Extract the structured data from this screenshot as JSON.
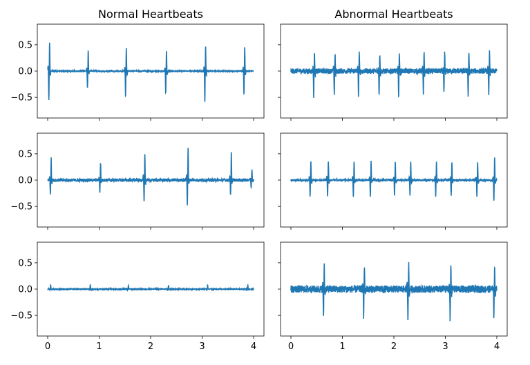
{
  "chart_data": [
    {
      "type": "line",
      "title": "Normal Heartbeats",
      "xlim": [
        0,
        4
      ],
      "ylim": [
        -0.8,
        0.8
      ],
      "xticks": [
        0,
        1,
        2,
        3,
        4
      ],
      "yticks": [
        0.5,
        0.0,
        -0.5
      ],
      "x_tick_labels_shown": false,
      "y_tick_labels_shown": true,
      "series_color": "#1f77b4",
      "peak_times": [
        0.03,
        0.78,
        1.52,
        2.3,
        3.06,
        3.82
      ],
      "peak_maxima": [
        0.68,
        0.49,
        0.55,
        0.49,
        0.59,
        0.58
      ],
      "peak_minima": [
        -0.69,
        -0.41,
        -0.6,
        -0.52,
        -0.74,
        -0.55
      ],
      "noise_level": 0.01
    },
    {
      "type": "line",
      "title": "Abnormal Heartbeats",
      "xlim": [
        0,
        4
      ],
      "ylim": [
        -0.8,
        0.8
      ],
      "xticks": [
        0,
        1,
        2,
        3,
        4
      ],
      "yticks": [
        0.5,
        0.0,
        -0.5
      ],
      "x_tick_labels_shown": false,
      "y_tick_labels_shown": false,
      "series_color": "#1f77b4",
      "peak_times": [
        0.45,
        0.85,
        1.32,
        1.72,
        2.1,
        2.58,
        2.98,
        3.45,
        3.85
      ],
      "peak_maxima": [
        0.45,
        0.42,
        0.45,
        0.42,
        0.43,
        0.45,
        0.42,
        0.44,
        0.43
      ],
      "peak_minima": [
        -0.58,
        -0.55,
        -0.57,
        -0.55,
        -0.58,
        -0.57,
        -0.55,
        -0.58,
        -0.54
      ],
      "noise_level": 0.05
    },
    {
      "type": "line",
      "title": "",
      "xlim": [
        0,
        4
      ],
      "ylim": [
        -0.8,
        0.8
      ],
      "xticks": [
        0,
        1,
        2,
        3,
        4
      ],
      "yticks": [
        0.5,
        0.0,
        -0.5
      ],
      "x_tick_labels_shown": false,
      "y_tick_labels_shown": true,
      "series_color": "#1f77b4",
      "peak_times": [
        0.06,
        1.02,
        1.88,
        2.72,
        3.56,
        3.96
      ],
      "peak_maxima": [
        0.52,
        0.42,
        0.63,
        0.78,
        0.66,
        0.24
      ],
      "peak_minima": [
        -0.36,
        -0.28,
        -0.52,
        -0.61,
        -0.38,
        -0.18
      ],
      "noise_level": 0.03
    },
    {
      "type": "line",
      "title": "",
      "xlim": [
        0,
        4
      ],
      "ylim": [
        -0.8,
        0.8
      ],
      "xticks": [
        0,
        1,
        2,
        3,
        4
      ],
      "yticks": [
        0.5,
        0.0,
        -0.5
      ],
      "x_tick_labels_shown": false,
      "y_tick_labels_shown": false,
      "series_color": "#1f77b4",
      "peak_times": [
        0.38,
        0.72,
        1.22,
        1.55,
        2.02,
        2.32,
        2.82,
        3.12,
        3.62,
        3.95
      ],
      "peak_maxima": [
        0.45,
        0.45,
        0.44,
        0.44,
        0.45,
        0.44,
        0.44,
        0.44,
        0.44,
        0.55
      ],
      "peak_minima": [
        -0.38,
        -0.38,
        -0.38,
        -0.38,
        -0.38,
        -0.38,
        -0.38,
        -0.38,
        -0.38,
        -0.5
      ],
      "noise_level": 0.02
    },
    {
      "type": "line",
      "title": "",
      "xlim": [
        0,
        4
      ],
      "ylim": [
        -0.8,
        0.8
      ],
      "xticks": [
        0,
        1,
        2,
        3,
        4
      ],
      "yticks": [
        0.5,
        0.0,
        -0.5
      ],
      "x_tick_labels_shown": true,
      "y_tick_labels_shown": true,
      "series_color": "#1f77b4",
      "peak_times": [
        0.05,
        0.82,
        1.56,
        2.34,
        3.1,
        3.88
      ],
      "peak_maxima": [
        0.1,
        0.1,
        0.09,
        0.09,
        0.1,
        0.1
      ],
      "peak_minima": [
        -0.03,
        -0.03,
        -0.03,
        -0.03,
        -0.03,
        -0.03
      ],
      "noise_level": 0.008
    },
    {
      "type": "line",
      "title": "",
      "xlim": [
        0,
        4
      ],
      "ylim": [
        -0.8,
        0.8
      ],
      "xticks": [
        0,
        1,
        2,
        3,
        4
      ],
      "yticks": [
        0.5,
        0.0,
        -0.5
      ],
      "x_tick_labels_shown": true,
      "y_tick_labels_shown": false,
      "series_color": "#1f77b4",
      "peak_times": [
        0.64,
        1.42,
        2.28,
        3.1,
        3.95
      ],
      "peak_maxima": [
        0.58,
        0.58,
        0.58,
        0.58,
        0.58
      ],
      "peak_minima": [
        -0.72,
        -0.68,
        -0.7,
        -0.74,
        -0.72
      ],
      "noise_level": 0.07
    }
  ]
}
